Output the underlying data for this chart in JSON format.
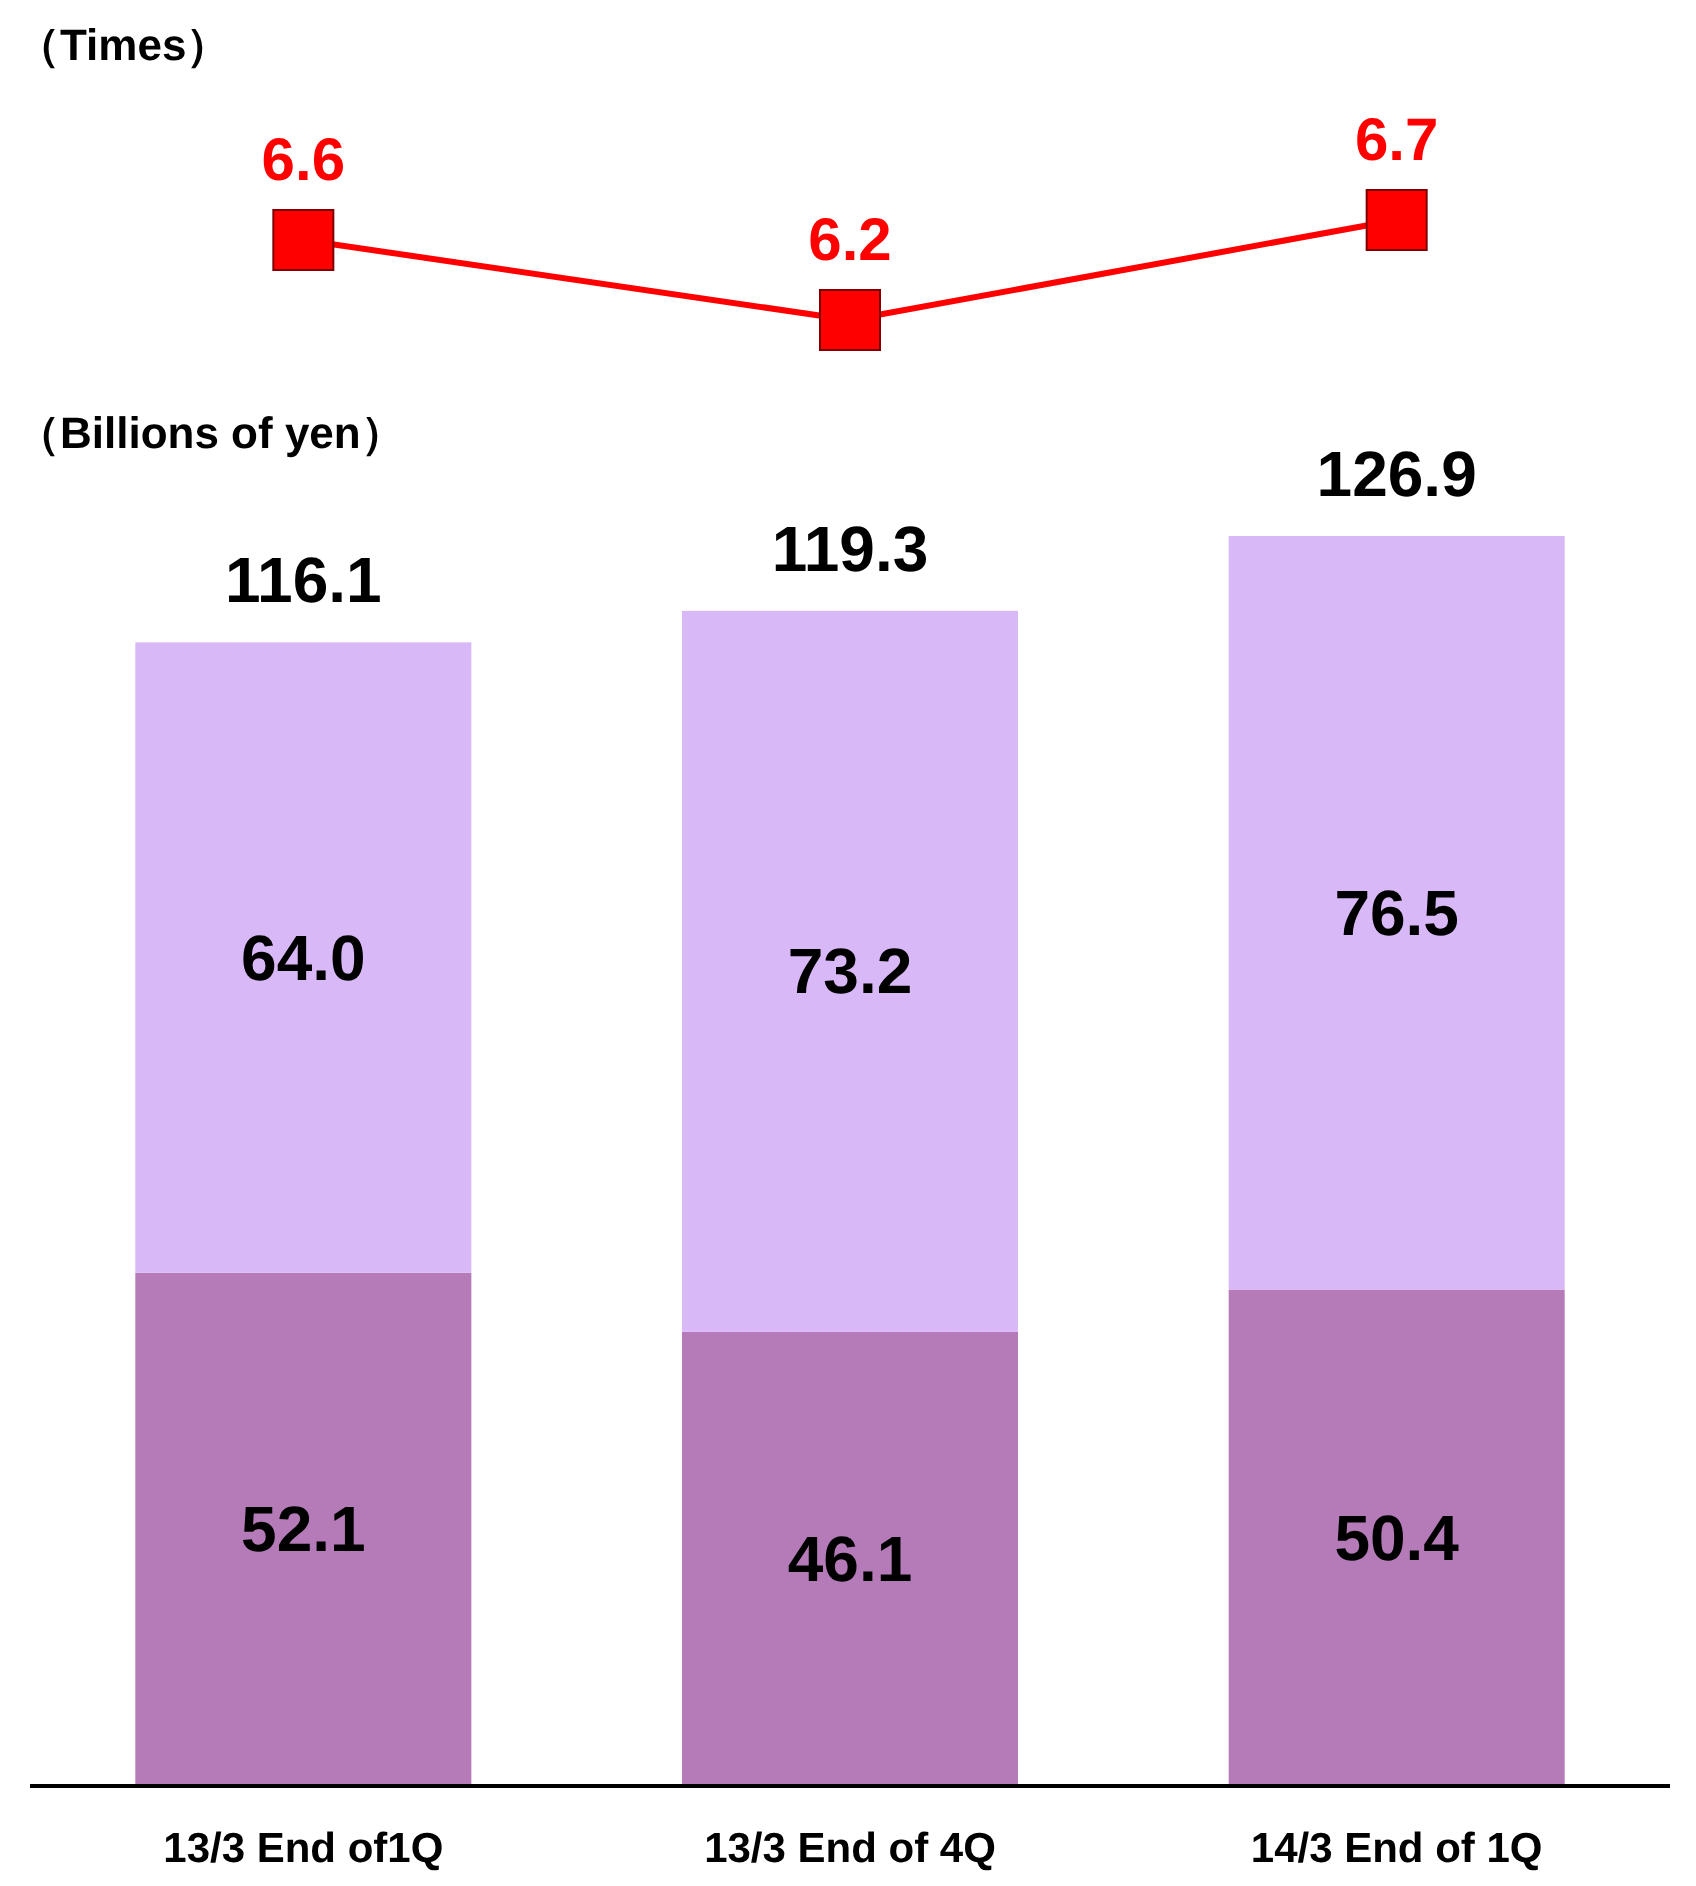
{
  "chart_data": [
    {
      "type": "line",
      "ylabel": "（Times）",
      "categories": [
        null,
        null,
        null
      ],
      "series": [
        {
          "color": "#ff0000",
          "values": [
            6.6,
            6.2,
            6.7
          ]
        }
      ],
      "marker": "square",
      "line_style": "solid",
      "data_labels": true
    },
    {
      "type": "bar",
      "ylabel": "（Billions of yen）",
      "categories": [
        "13/3 End of1Q",
        "13/3 End of 4Q",
        "14/3 End of 1Q"
      ],
      "stacked": true,
      "series": [
        {
          "color": "#b57ab8",
          "values": [
            52.1,
            46.1,
            50.4
          ],
          "value_labels": [
            "52.1",
            "46.1",
            "50.4"
          ]
        },
        {
          "color": "#d9b8f7",
          "values": [
            64.0,
            73.2,
            76.5
          ],
          "value_labels": [
            "64.0",
            "73.2",
            "76.5"
          ]
        }
      ],
      "totals": [
        "116.1",
        "119.3",
        "126.9"
      ],
      "tick_labels": "x"
    }
  ]
}
